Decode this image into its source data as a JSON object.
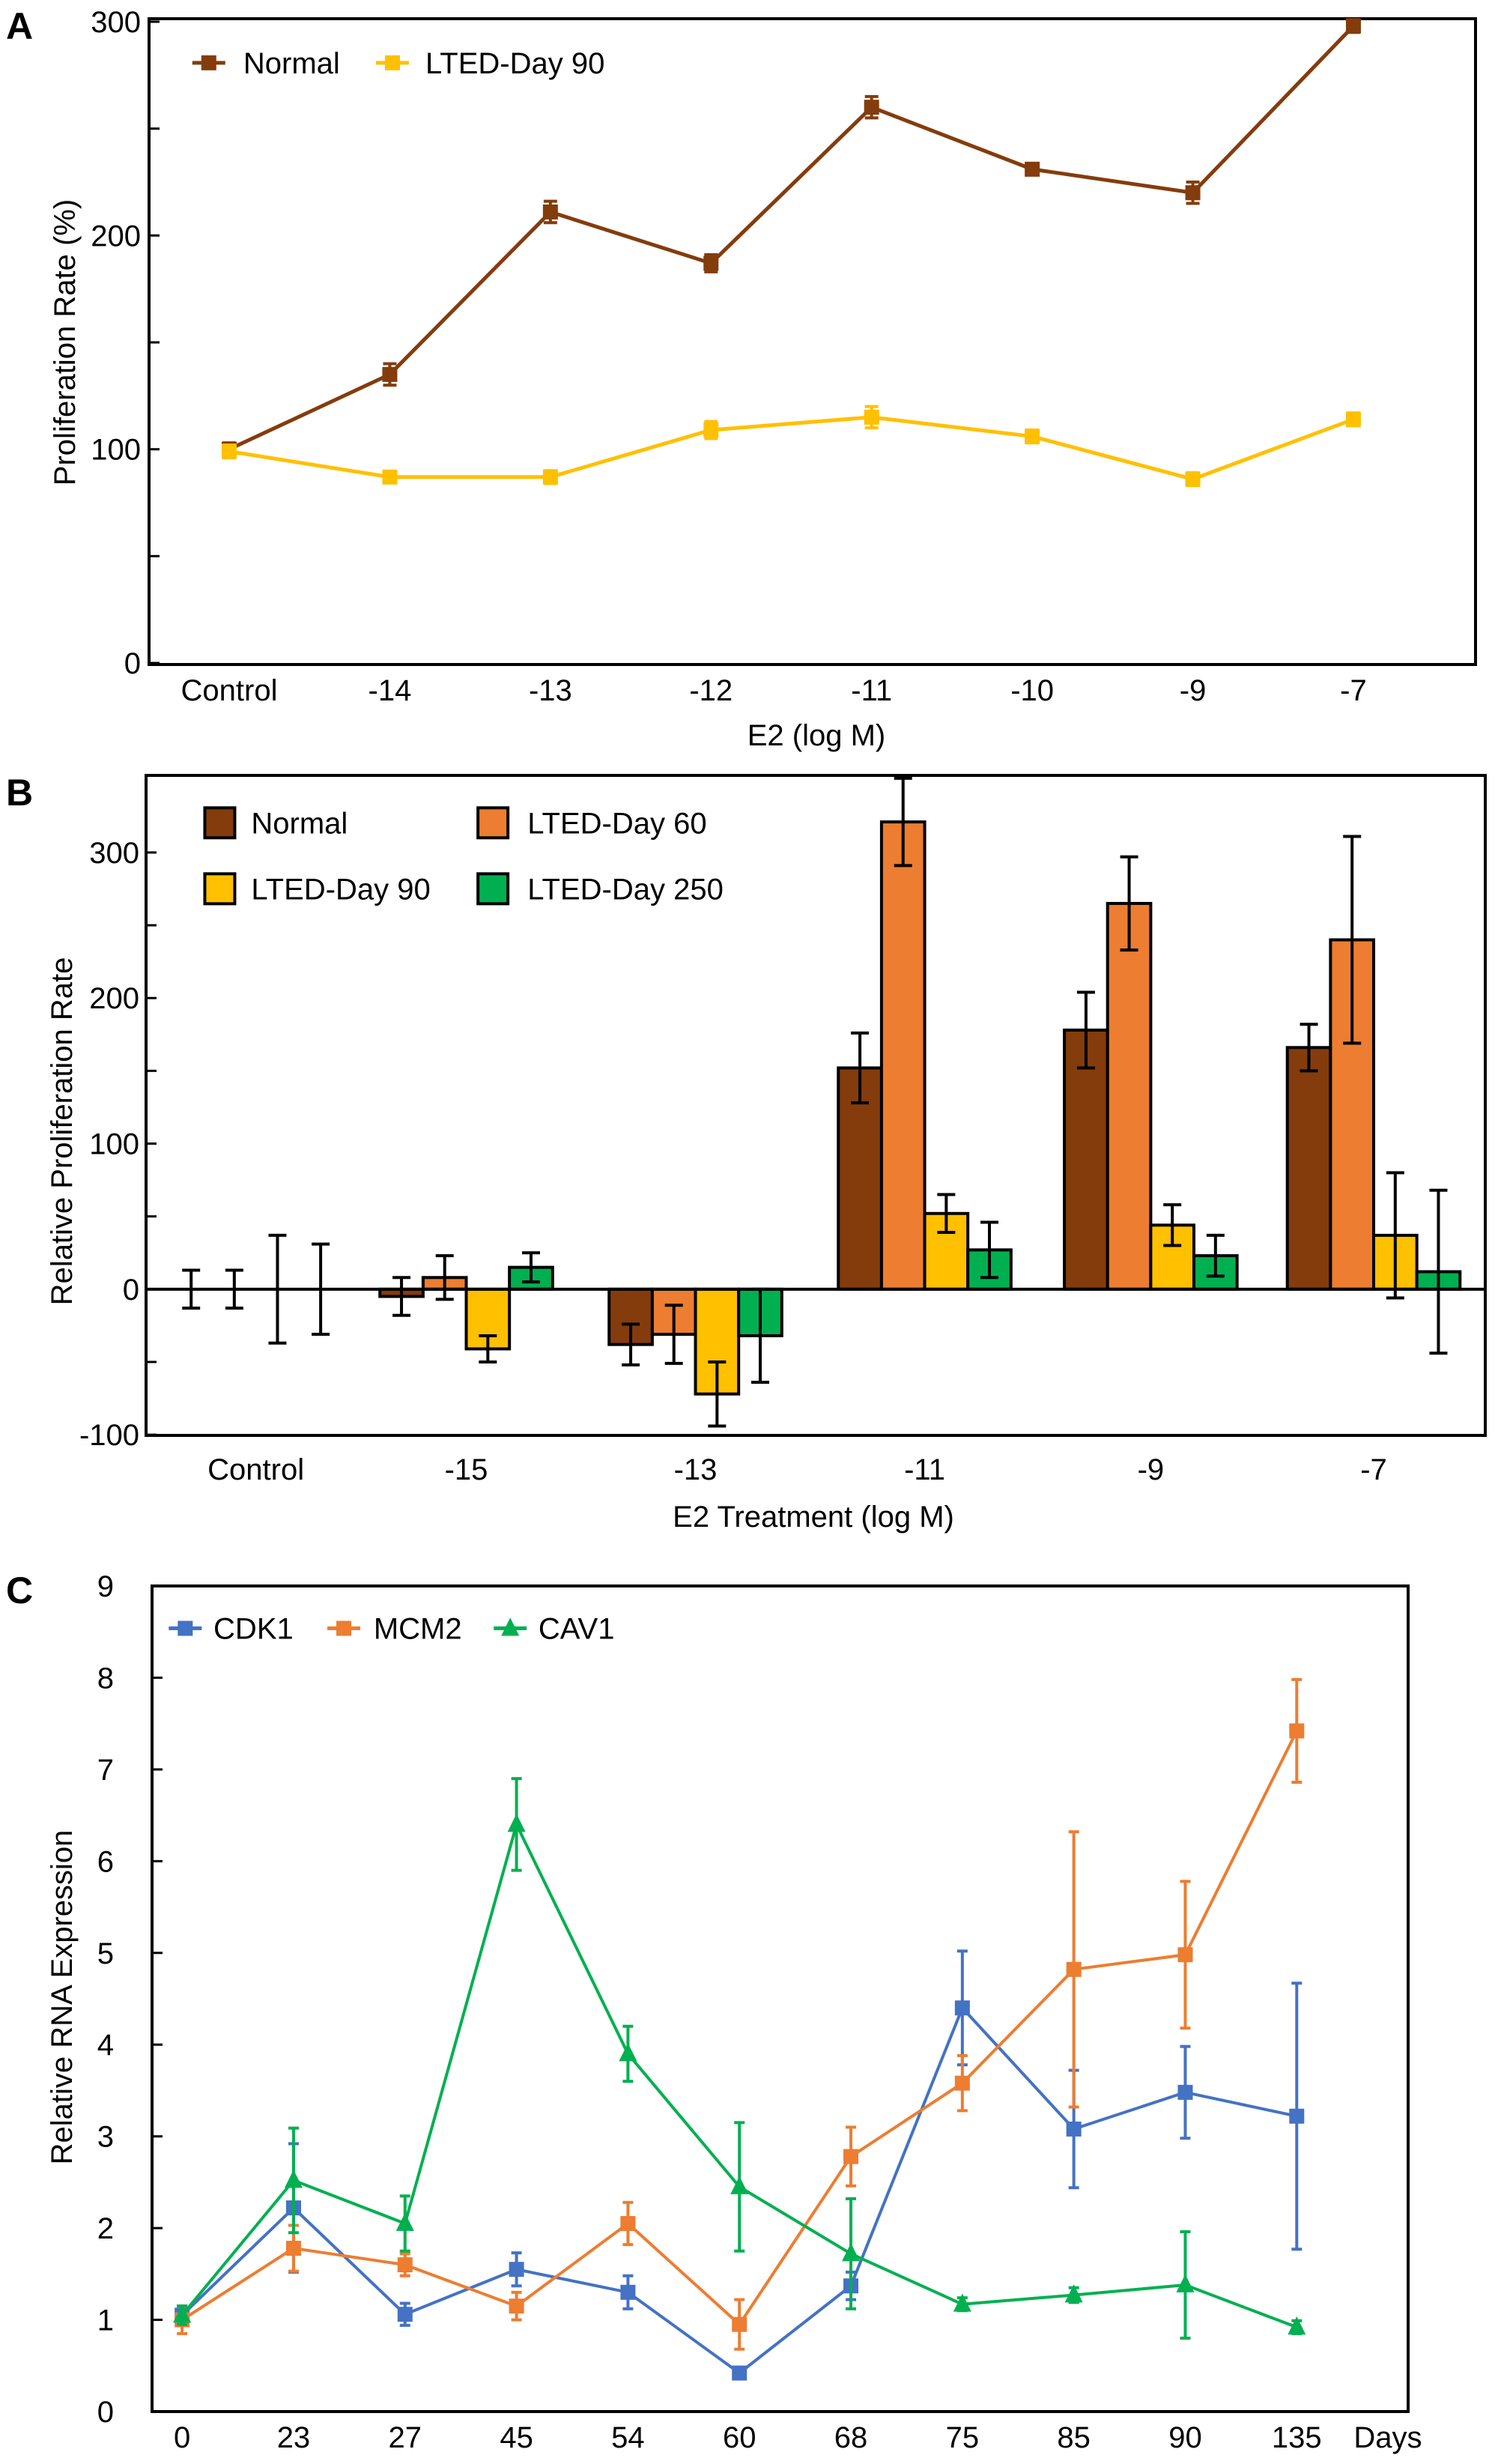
{
  "chart_data": [
    {
      "panel": "A",
      "type": "line",
      "categories": [
        "Control",
        "-14",
        "-13",
        "-12",
        "-11",
        "-10",
        "-9",
        "-7"
      ],
      "xlabel": "E2 (log M)",
      "ylabel": "Proliferation Rate (%)",
      "ylim": [
        0,
        300
      ],
      "yticks": [
        0,
        100,
        200,
        300
      ],
      "legend": "top-left",
      "series": [
        {
          "name": "Normal",
          "color": "#843C0C",
          "marker": "square",
          "values": [
            100,
            135,
            211,
            187,
            260,
            231,
            220,
            298
          ],
          "errors": [
            3,
            5,
            5,
            4,
            5,
            2,
            5,
            3
          ]
        },
        {
          "name": "LTED-Day 90",
          "color": "#FFC000",
          "marker": "square",
          "values": [
            99,
            87,
            87,
            109,
            115,
            106,
            86,
            114
          ],
          "errors": [
            3,
            2,
            3,
            4,
            5,
            3,
            3,
            3
          ]
        }
      ]
    },
    {
      "panel": "B",
      "type": "bar",
      "categories": [
        "Control",
        "-15",
        "-13",
        "-11",
        "-9",
        "-7"
      ],
      "xlabel": "E2 Treatment (log M)",
      "ylabel": "Relative Proliferation Rate",
      "ylim": [
        -100,
        352
      ],
      "yticks": [
        -100,
        0,
        100,
        200,
        300
      ],
      "legend": "top-left",
      "series": [
        {
          "name": "Normal",
          "color": "#843C0C",
          "values": [
            0,
            -5,
            -38,
            152,
            178,
            166
          ],
          "errors": [
            13,
            13,
            14,
            24,
            26,
            16
          ]
        },
        {
          "name": "LTED-Day 60",
          "color": "#ED7D31",
          "values": [
            0,
            8,
            -31,
            321,
            265,
            240
          ],
          "errors": [
            13,
            15,
            20,
            30,
            32,
            71
          ]
        },
        {
          "name": "LTED-Day 90",
          "color": "#FFC000",
          "values": [
            0,
            -41,
            -72,
            52,
            44,
            37
          ],
          "errors": [
            37,
            9,
            22,
            13,
            14,
            43
          ]
        },
        {
          "name": "LTED-Day 250",
          "color": "#00B050",
          "values": [
            0,
            15,
            -32,
            27,
            23,
            12
          ],
          "errors": [
            31,
            10,
            32,
            19,
            14,
            56
          ]
        }
      ]
    },
    {
      "panel": "C",
      "type": "line",
      "categories": [
        "0",
        "23",
        "27",
        "45",
        "54",
        "60",
        "68",
        "75",
        "85",
        "90",
        "135"
      ],
      "xunit": "Days",
      "ylabel": "Relative RNA Expression",
      "ylim": [
        0,
        9
      ],
      "yticks": [
        0,
        1,
        2,
        3,
        4,
        5,
        6,
        7,
        8,
        9
      ],
      "legend": "top-left",
      "series": [
        {
          "name": "CDK1",
          "color": "#4472C4",
          "marker": "square",
          "values": [
            1.05,
            2.22,
            1.06,
            1.55,
            1.3,
            0.42,
            1.37,
            4.4,
            3.08,
            3.48,
            3.22
          ],
          "errors": [
            0.1,
            0.7,
            0.12,
            0.18,
            0.18,
            0.05,
            0.15,
            0.62,
            0.64,
            0.5,
            1.45
          ]
        },
        {
          "name": "MCM2",
          "color": "#ED7D31",
          "marker": "square",
          "values": [
            1.0,
            1.78,
            1.6,
            1.15,
            2.05,
            0.95,
            2.78,
            3.58,
            4.82,
            4.98,
            7.42
          ],
          "errors": [
            0.15,
            0.25,
            0.12,
            0.15,
            0.23,
            0.27,
            0.32,
            0.3,
            1.5,
            0.8,
            0.56
          ]
        },
        {
          "name": "CAV1",
          "color": "#00B050",
          "marker": "triangle",
          "values": [
            1.05,
            2.52,
            2.05,
            6.4,
            3.9,
            2.45,
            1.72,
            1.17,
            1.27,
            1.38,
            0.92
          ],
          "errors": [
            0.1,
            0.57,
            0.3,
            0.5,
            0.3,
            0.7,
            0.6,
            0.07,
            0.08,
            0.58,
            0.07
          ]
        }
      ]
    }
  ]
}
